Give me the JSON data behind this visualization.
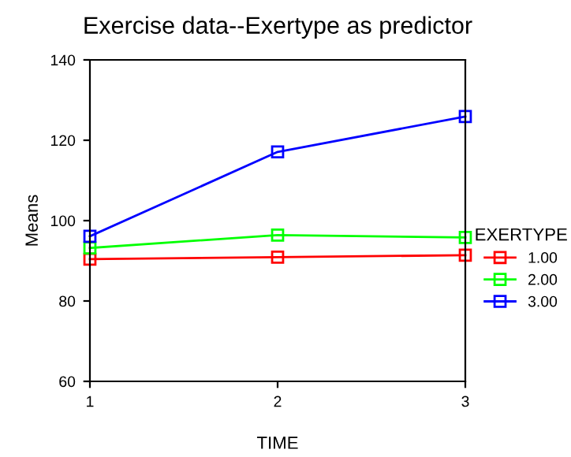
{
  "chart_data": {
    "type": "line",
    "title": "Exercise data--Exertype as predictor",
    "xlabel": "TIME",
    "ylabel": "Means",
    "legend_title": "EXERTYPE",
    "x": [
      1,
      2,
      3
    ],
    "xlim": [
      1,
      3
    ],
    "xticks": [
      1,
      2,
      3
    ],
    "ylim": [
      60,
      140
    ],
    "yticks": [
      60,
      80,
      100,
      120,
      140
    ],
    "series": [
      {
        "name": "1.00",
        "color": "#ff0000",
        "values": [
          90.4,
          90.9,
          91.4
        ]
      },
      {
        "name": "2.00",
        "color": "#00ff00",
        "values": [
          93.2,
          96.4,
          95.8
        ]
      },
      {
        "name": "3.00",
        "color": "#0000ff",
        "values": [
          96.1,
          117.1,
          125.9
        ]
      }
    ],
    "marker": "square",
    "line_style": "solid",
    "grid": false,
    "legend": "right"
  }
}
